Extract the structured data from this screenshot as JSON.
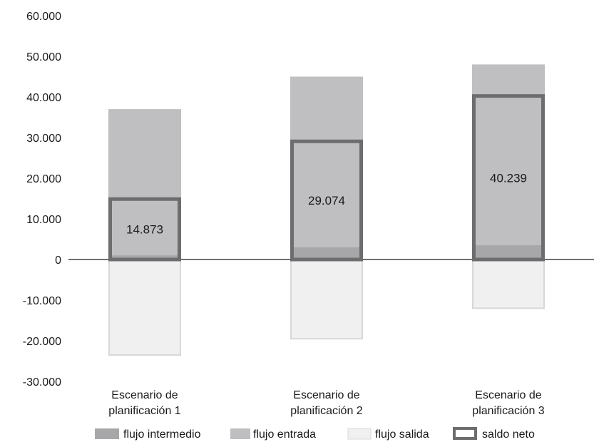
{
  "chart_data": {
    "type": "bar",
    "categories": [
      "Escenario de planificación 1",
      "Escenario de planificación 2",
      "Escenario de planificación 3"
    ],
    "category_lines": [
      [
        "Escenario de",
        "planificación 1"
      ],
      [
        "Escenario de",
        "planificación 2"
      ],
      [
        "Escenario de",
        "planificación 3"
      ]
    ],
    "series": [
      {
        "name": "flujo intermedio",
        "values": [
          1000,
          3000,
          3500
        ],
        "color": "#a7a7a9"
      },
      {
        "name": "flujo entrada",
        "values": [
          37000,
          45000,
          48000
        ],
        "color": "#bfbfc1"
      },
      {
        "name": "flujo salida",
        "values": [
          -23500,
          -19500,
          -12000
        ],
        "color": "#f0f0f0"
      },
      {
        "name": "saldo neto",
        "values": [
          14873,
          29074,
          40239
        ],
        "color": "#6d6d6f"
      }
    ],
    "net_labels": [
      "14.873",
      "29.074",
      "40.239"
    ],
    "ylim": [
      -30000,
      60000
    ],
    "yticks": [
      60000,
      50000,
      40000,
      30000,
      20000,
      10000,
      0,
      -10000,
      -20000,
      -30000
    ],
    "ytick_labels": [
      "60.000",
      "50.000",
      "40.000",
      "30.000",
      "20.000",
      "10.000",
      "0",
      "-10.000",
      "-20.000",
      "-30.000"
    ],
    "legend": [
      "flujo intermedio",
      "flujo entrada",
      "flujo salida",
      "saldo neto"
    ],
    "legend_position": "bottom",
    "grid": false,
    "title": "",
    "xlabel": "",
    "ylabel": ""
  }
}
